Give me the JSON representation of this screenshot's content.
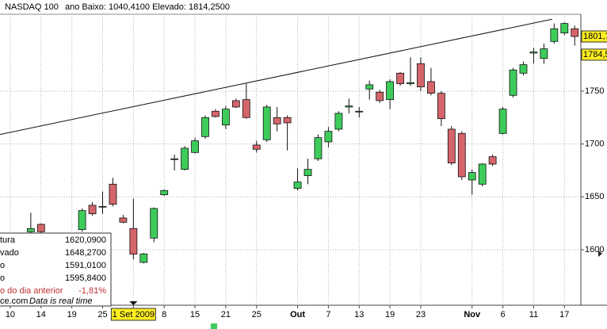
{
  "chart_data": {
    "type": "candlestick",
    "title": "NASDAQ 100",
    "subtitle": "ano Baixo: 1040,4100 Elevado: 1814,2500",
    "xlim": [
      0,
      56.6
    ],
    "ylim": [
      1547.5,
      1822.7
    ],
    "yticks": [
      1600,
      1650,
      1700,
      1750
    ],
    "xticks": [
      {
        "value": 1,
        "label": "10"
      },
      {
        "value": 4,
        "label": "14"
      },
      {
        "value": 7,
        "label": "19"
      },
      {
        "value": 10,
        "label": "25"
      },
      {
        "value": 13,
        "label": "1 Set 2009"
      },
      {
        "value": 16,
        "label": "8"
      },
      {
        "value": 19,
        "label": "15"
      },
      {
        "value": 22,
        "label": "21"
      },
      {
        "value": 25,
        "label": "25"
      },
      {
        "value": 29,
        "label": "Out"
      },
      {
        "value": 32,
        "label": "7"
      },
      {
        "value": 35,
        "label": "13"
      },
      {
        "value": 38,
        "label": "19"
      },
      {
        "value": 41,
        "label": "23"
      },
      {
        "value": 46,
        "label": "Nov"
      },
      {
        "value": 49,
        "label": "6"
      },
      {
        "value": 52,
        "label": "11"
      },
      {
        "value": 55,
        "label": "17"
      }
    ],
    "highlight_tick": 4,
    "grid": true,
    "up_color": "#3dcc5a",
    "down_color": "#d4656a",
    "x": [
      3,
      4,
      8,
      9,
      10,
      11,
      12,
      13,
      14,
      15,
      16,
      17,
      18,
      19,
      20,
      21,
      22,
      23,
      24,
      25,
      26,
      27,
      28,
      29,
      30,
      31,
      32,
      33,
      34,
      35,
      36,
      37,
      38,
      39,
      40,
      41,
      42,
      43,
      44,
      45,
      46,
      47,
      48,
      49,
      50,
      51,
      52,
      53,
      54,
      55,
      56
    ],
    "open": [
      1617,
      1624,
      1619,
      1642,
      1641,
      1662,
      1630,
      1620.09,
      1588,
      1611,
      1652,
      1686,
      1676,
      1692,
      1707,
      1731,
      1718,
      1741,
      1742,
      1699,
      1704,
      1725,
      1725,
      1658,
      1670,
      1686,
      1702,
      1714,
      1735,
      1731,
      1752,
      1749,
      1742,
      1767,
      1757,
      1776,
      1759,
      1748,
      1714,
      1710,
      1666,
      1662,
      1688,
      1710,
      1746,
      1767,
      1786,
      1781,
      1797,
      1805,
      1809
    ],
    "high": [
      1635,
      1625,
      1639,
      1645,
      1655,
      1668,
      1633,
      1648.27,
      1597,
      1640,
      1657,
      1690,
      1698,
      1706,
      1727,
      1733,
      1736,
      1743,
      1757,
      1703,
      1737,
      1735,
      1727,
      1677,
      1686,
      1709,
      1716,
      1731,
      1743,
      1735,
      1760,
      1751,
      1761,
      1768,
      1782,
      1782,
      1772,
      1750,
      1717,
      1712,
      1676,
      1682,
      1690,
      1735,
      1772,
      1778,
      1791,
      1795,
      1814,
      1815,
      1812
    ],
    "low": [
      1616,
      1616,
      1617,
      1632,
      1634,
      1641,
      1625,
      1591.01,
      1587,
      1607,
      1651,
      1675,
      1675,
      1691,
      1705,
      1725,
      1714,
      1734,
      1724,
      1692,
      1702,
      1712,
      1694,
      1656,
      1662,
      1684,
      1697,
      1712,
      1729,
      1725,
      1742,
      1739,
      1733,
      1755,
      1755,
      1750,
      1746,
      1717,
      1680,
      1666,
      1652,
      1660,
      1679,
      1709,
      1744,
      1765,
      1776,
      1776,
      1795,
      1803,
      1793
    ],
    "close": [
      1620,
      1617,
      1637,
      1634,
      1641,
      1643,
      1626,
      1595.84,
      1596,
      1639,
      1656,
      1686,
      1696,
      1703,
      1725,
      1726,
      1733,
      1735,
      1725,
      1695,
      1735,
      1719,
      1720,
      1664,
      1676,
      1706,
      1712,
      1729,
      1736,
      1731,
      1756,
      1741,
      1759,
      1757,
      1758,
      1754,
      1748,
      1724,
      1682,
      1669,
      1673,
      1681,
      1681,
      1733,
      1770,
      1775,
      1787,
      1790,
      1809,
      1814,
      1801.7
    ],
    "trendline": {
      "x": [
        0,
        53.8
      ],
      "y": [
        1709,
        1818
      ]
    },
    "price_tags": [
      {
        "value": 1801.7,
        "label": "1801,7"
      },
      {
        "value": 1784.5,
        "label": "1784,5"
      }
    ],
    "info_box": {
      "rows": [
        {
          "label": "tura",
          "value": "1620,0900"
        },
        {
          "label": "vado",
          "value": "1648,2700"
        },
        {
          "label": "o",
          "value": "1591,0100"
        },
        {
          "label": "o",
          "value": "1595,8400"
        },
        {
          "label": "o do dia anterior",
          "value": "-1,81%"
        }
      ],
      "footer": "ce.com",
      "footer_note": "Data is real time"
    }
  }
}
